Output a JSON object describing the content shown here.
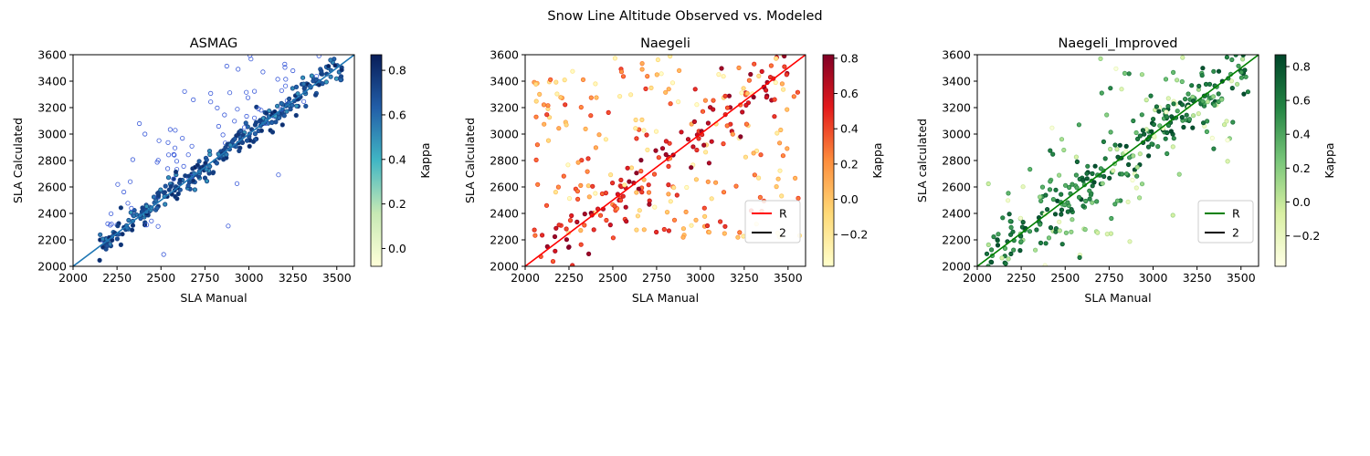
{
  "figure": {
    "suptitle": "Snow Line Altitude Observed vs. Modeled"
  },
  "chart_data": [
    {
      "type": "scatter",
      "title": "ASMAG",
      "xlabel": "SLA Manual",
      "ylabel": "SLA Calculated",
      "xlim": [
        2000,
        3600
      ],
      "ylim": [
        2000,
        3600
      ],
      "xticks": [
        "2000",
        "2250",
        "2500",
        "2750",
        "3000",
        "3250",
        "3500"
      ],
      "yticks": [
        "2000",
        "2200",
        "2400",
        "2600",
        "2800",
        "3000",
        "3200",
        "3400",
        "3600"
      ],
      "colormap": "YlGnBu",
      "colorbar": {
        "label": "Kappa",
        "range": [
          -0.08,
          0.87
        ],
        "ticks": [
          "0.0",
          "0.2",
          "0.4",
          "0.6",
          "0.8"
        ]
      },
      "reference_line": {
        "x": [
          2000,
          3600
        ],
        "y": [
          2000,
          3600
        ],
        "color": "#1f77b4"
      },
      "legend": null,
      "point_count": 420,
      "point_seed": 11,
      "points_description": "Points cluster tightly along the 1:1 line (x ≈ y) between 2200 and 3500 m, plus scattered outliers mostly above the line (overestimation) in the 2000–2800 range; low-kappa points drawn as open markers."
    },
    {
      "type": "scatter",
      "title": "Naegeli",
      "xlabel": "SLA Manual",
      "ylabel": "SLA Calculated",
      "xlim": [
        2000,
        3600
      ],
      "ylim": [
        2000,
        3600
      ],
      "xticks": [
        "2000",
        "2250",
        "2500",
        "2750",
        "3000",
        "3250",
        "3500"
      ],
      "yticks": [
        "2000",
        "2200",
        "2400",
        "2600",
        "2800",
        "3000",
        "3200",
        "3400",
        "3600"
      ],
      "colormap": "YlOrRd",
      "colorbar": {
        "label": "Kappa",
        "range": [
          -0.38,
          0.82
        ],
        "ticks": [
          "−0.2",
          "0.0",
          "0.2",
          "0.4",
          "0.6",
          "0.8"
        ]
      },
      "reference_line": {
        "x": [
          2000,
          3600
        ],
        "y": [
          2000,
          3600
        ],
        "color": "#ff0000"
      },
      "legend": {
        "entries": [
          {
            "label": "R",
            "color": "#ff0000"
          },
          {
            "label": "2",
            "color": "#000000"
          }
        ],
        "position": "lower-right"
      },
      "point_count": 330,
      "point_seed": 23,
      "points_description": "Wide scatter across the full range with weak correlation to the 1:1 line; many points between 2200–3600 calculated for 2000–3500 manual."
    },
    {
      "type": "scatter",
      "title": "Naegeli_Improved",
      "xlabel": "SLA Manual",
      "ylabel": "SLA calculated",
      "xlim": [
        2000,
        3600
      ],
      "ylim": [
        2000,
        3600
      ],
      "xticks": [
        "2000",
        "2250",
        "2500",
        "2750",
        "3000",
        "3250",
        "3500"
      ],
      "yticks": [
        "2000",
        "2200",
        "2400",
        "2600",
        "2800",
        "3000",
        "3200",
        "3400",
        "3600"
      ],
      "colormap": "YlGn",
      "colorbar": {
        "label": "Kappa",
        "range": [
          -0.38,
          0.87
        ],
        "ticks": [
          "−0.2",
          "0.0",
          "0.2",
          "0.4",
          "0.6",
          "0.8"
        ]
      },
      "reference_line": {
        "x": [
          2000,
          3600
        ],
        "y": [
          2000,
          3600
        ],
        "color": "#008000"
      },
      "legend": {
        "entries": [
          {
            "label": "R",
            "color": "#008000"
          },
          {
            "label": "2",
            "color": "#000000"
          }
        ],
        "position": "lower-right"
      },
      "point_count": 380,
      "point_seed": 37,
      "points_description": "Moderate scatter around the 1:1 line, denser band between 2500 and 3200; some outliers above and below."
    }
  ]
}
